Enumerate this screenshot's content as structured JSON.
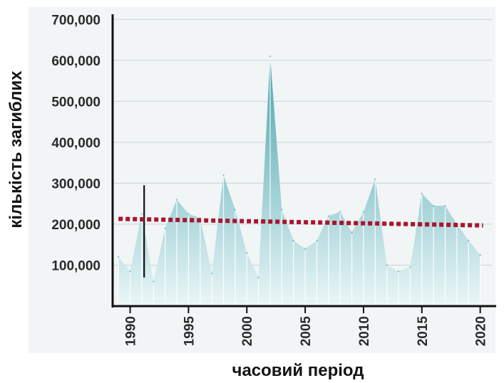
{
  "chart_data": {
    "type": "area",
    "title": "",
    "xlabel": "часовий період",
    "ylabel": "кількість загиблих",
    "xlim": [
      1988.5,
      2021
    ],
    "ylim": [
      0,
      730000
    ],
    "grid": true,
    "y_ticks": [
      {
        "value": 100000,
        "label": "100,000"
      },
      {
        "value": 200000,
        "label": "200,000"
      },
      {
        "value": 300000,
        "label": "300,000"
      },
      {
        "value": 400000,
        "label": "400,000"
      },
      {
        "value": 500000,
        "label": "500,000"
      },
      {
        "value": 600000,
        "label": "600,000"
      },
      {
        "value": 700000,
        "label": "700,000"
      }
    ],
    "x_ticks": [
      {
        "value": 1990,
        "label": "1990"
      },
      {
        "value": 1995,
        "label": "1995"
      },
      {
        "value": 2000,
        "label": "2000"
      },
      {
        "value": 2005,
        "label": "2005"
      },
      {
        "value": 2010,
        "label": "2010"
      },
      {
        "value": 2015,
        "label": "2015"
      },
      {
        "value": 2020,
        "label": "2020"
      }
    ],
    "series": [
      {
        "type": "area",
        "x": [
          1989,
          1990,
          1991,
          1992,
          1993,
          1994,
          1995,
          1996,
          1997,
          1998,
          1999,
          2000,
          2001,
          2002,
          2003,
          2004,
          2005,
          2006,
          2007,
          2008,
          2009,
          2010,
          2011,
          2012,
          2013,
          2014,
          2015,
          2016,
          2017,
          2018,
          2019,
          2020
        ],
        "y": [
          120000,
          85000,
          225000,
          60000,
          190000,
          260000,
          225000,
          215000,
          80000,
          320000,
          235000,
          130000,
          70000,
          610000,
          235000,
          160000,
          140000,
          160000,
          220000,
          230000,
          180000,
          230000,
          310000,
          100000,
          85000,
          95000,
          275000,
          245000,
          245000,
          200000,
          160000,
          125000
        ]
      },
      {
        "type": "line",
        "style": "dotted",
        "x": [
          1989,
          2020
        ],
        "y": [
          213000,
          197000
        ]
      }
    ],
    "spike_marker": {
      "x": 1991.2,
      "y_from": 70000,
      "y_to": 295000
    },
    "colors": {
      "area_light": "#d4ecee",
      "area_dark": "#58aab2",
      "trend": "#a8162e",
      "plot_bg": "#f1f5f6",
      "axis": "#111111",
      "grid": "#c9d3d5"
    }
  }
}
